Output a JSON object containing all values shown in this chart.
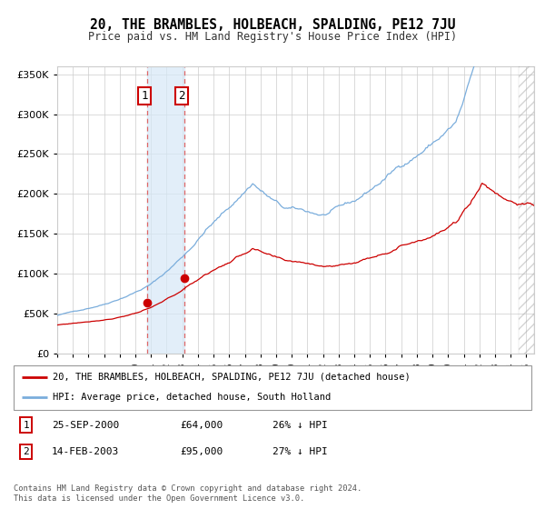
{
  "title": "20, THE BRAMBLES, HOLBEACH, SPALDING, PE12 7JU",
  "subtitle": "Price paid vs. HM Land Registry's House Price Index (HPI)",
  "legend_line1": "20, THE BRAMBLES, HOLBEACH, SPALDING, PE12 7JU (detached house)",
  "legend_line2": "HPI: Average price, detached house, South Holland",
  "table_rows": [
    {
      "num": "1",
      "date": "25-SEP-2000",
      "price": "£64,000",
      "hpi": "26% ↓ HPI"
    },
    {
      "num": "2",
      "date": "14-FEB-2003",
      "price": "£95,000",
      "hpi": "27% ↓ HPI"
    }
  ],
  "footer": "Contains HM Land Registry data © Crown copyright and database right 2024.\nThis data is licensed under the Open Government Licence v3.0.",
  "hpi_color": "#7aaddc",
  "price_color": "#cc0000",
  "background_color": "#ffffff",
  "plot_bg": "#ffffff",
  "sale1_date_num": 2000.73,
  "sale1_price": 64000,
  "sale2_date_num": 2003.12,
  "sale2_price": 95000,
  "xmin": 1995.0,
  "xmax": 2025.5,
  "ymin": 0,
  "ymax": 360000,
  "yticks": [
    0,
    50000,
    100000,
    150000,
    200000,
    250000,
    300000,
    350000
  ],
  "hatch_start": 2024.5
}
